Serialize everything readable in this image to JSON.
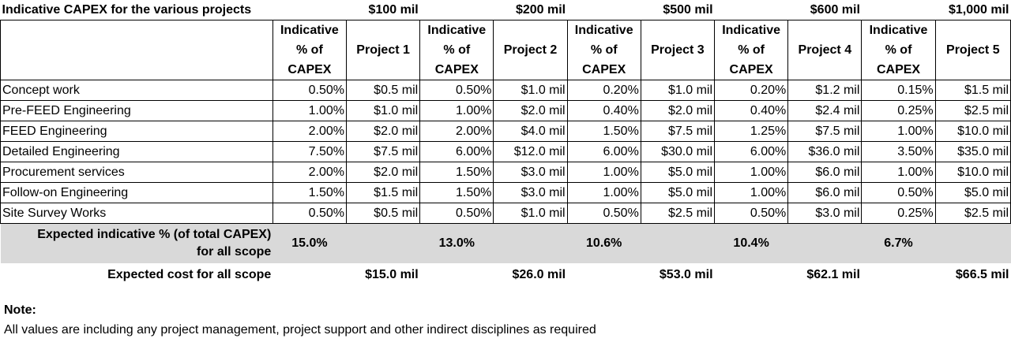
{
  "title": "Indicative CAPEX for the various projects",
  "project_sizes": [
    "$100 mil",
    "$200 mil",
    "$500 mil",
    "$600 mil",
    "$1,000 mil"
  ],
  "header": {
    "pct_lines": [
      "Indicative",
      "% of",
      "CAPEX"
    ],
    "projects": [
      "Project 1",
      "Project 2",
      "Project 3",
      "Project 4",
      "Project 5"
    ]
  },
  "rows": [
    {
      "label": "Concept work",
      "cells": [
        "0.50%",
        "$0.5 mil",
        "0.50%",
        "$1.0 mil",
        "0.20%",
        "$1.0 mil",
        "0.20%",
        "$1.2 mil",
        "0.15%",
        "$1.5 mil"
      ]
    },
    {
      "label": "Pre-FEED Engineering",
      "cells": [
        "1.00%",
        "$1.0 mil",
        "1.00%",
        "$2.0 mil",
        "0.40%",
        "$2.0 mil",
        "0.40%",
        "$2.4 mil",
        "0.25%",
        "$2.5 mil"
      ]
    },
    {
      "label": "FEED Engineering",
      "cells": [
        "2.00%",
        "$2.0 mil",
        "2.00%",
        "$4.0 mil",
        "1.50%",
        "$7.5 mil",
        "1.25%",
        "$7.5 mil",
        "1.00%",
        "$10.0 mil"
      ]
    },
    {
      "label": "Detailed Engineering",
      "cells": [
        "7.50%",
        "$7.5 mil",
        "6.00%",
        "$12.0 mil",
        "6.00%",
        "$30.0 mil",
        "6.00%",
        "$36.0 mil",
        "3.50%",
        "$35.0 mil"
      ]
    },
    {
      "label": "Procurement services",
      "cells": [
        "2.00%",
        "$2.0 mil",
        "1.50%",
        "$3.0 mil",
        "1.00%",
        "$5.0 mil",
        "1.00%",
        "$6.0 mil",
        "1.00%",
        "$10.0 mil"
      ]
    },
    {
      "label": "Follow-on Engineering",
      "cells": [
        "1.50%",
        "$1.5 mil",
        "1.50%",
        "$3.0 mil",
        "1.00%",
        "$5.0 mil",
        "1.00%",
        "$6.0 mil",
        "0.50%",
        "$5.0 mil"
      ]
    },
    {
      "label": "Site Survey Works",
      "cells": [
        "0.50%",
        "$0.5 mil",
        "0.50%",
        "$1.0 mil",
        "0.50%",
        "$2.5 mil",
        "0.50%",
        "$3.0 mil",
        "0.25%",
        "$2.5 mil"
      ]
    }
  ],
  "summary": {
    "label_line1": "Expected indicative % (of total CAPEX)",
    "label_line2": "for all scope",
    "values": [
      "15.0%",
      "13.0%",
      "10.6%",
      "10.4%",
      "6.7%"
    ]
  },
  "cost": {
    "label": "Expected cost for all scope",
    "values": [
      "$15.0 mil",
      "$26.0 mil",
      "$53.0 mil",
      "$62.1 mil",
      "$66.5 mil"
    ]
  },
  "note": {
    "heading": "Note:",
    "text": "All values are including any project management, project support and other indirect disciplines as required"
  }
}
